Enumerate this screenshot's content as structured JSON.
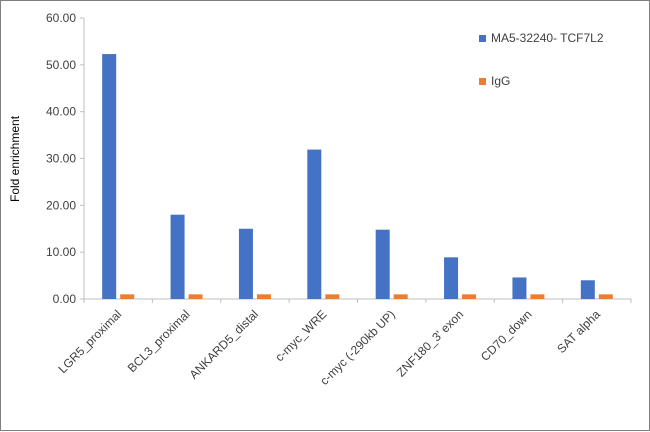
{
  "chart_data": {
    "type": "bar",
    "title": "",
    "xlabel": "",
    "ylabel": "Fold enrichment",
    "ylim": [
      0,
      60
    ],
    "yticks": [
      "0.00",
      "10.00",
      "20.00",
      "30.00",
      "40.00",
      "50.00",
      "60.00"
    ],
    "categories": [
      "LGR5_proximal",
      "BCL3_proximal",
      "ANKARD5_distal",
      "c-myc_WRE",
      "c-myc (-290kb UP)",
      "ZNF180_3' exon",
      "CD70_down",
      "SAT alpha"
    ],
    "series": [
      {
        "name": "MA5-32240- TCF7L2",
        "color": "#4472c4",
        "values": [
          52.3,
          18.0,
          15.0,
          31.9,
          14.8,
          8.9,
          4.6,
          4.0
        ]
      },
      {
        "name": "IgG",
        "color": "#ed7d31",
        "values": [
          1.0,
          1.0,
          1.0,
          1.0,
          1.0,
          1.0,
          1.0,
          1.0
        ]
      }
    ],
    "legend_position": "top-right",
    "grid": false
  }
}
